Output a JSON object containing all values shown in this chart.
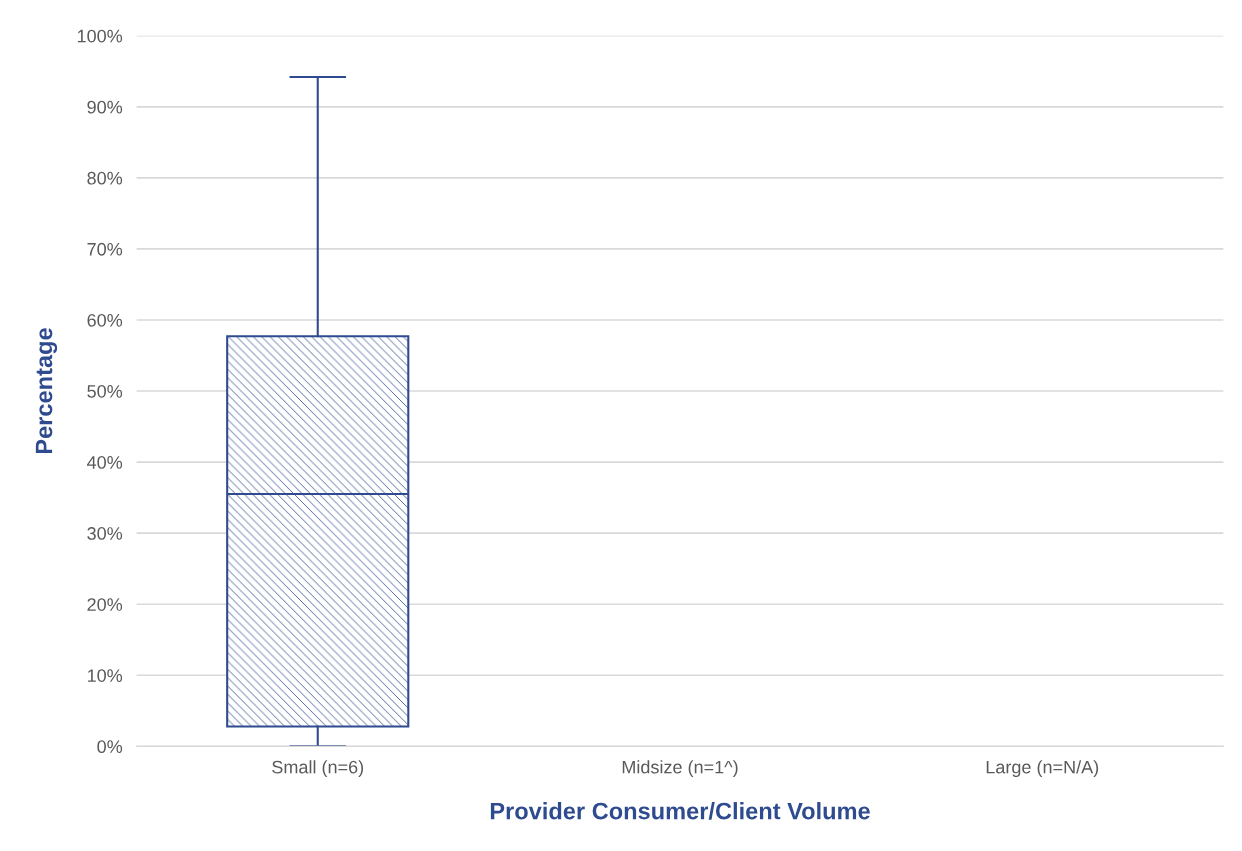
{
  "chart_data": {
    "type": "box",
    "xlabel": "Provider Consumer/Client Volume",
    "ylabel": "Percentage",
    "categories": [
      "Small (n=6)",
      "Midsize (n=1^)",
      "Large (n=N/A)"
    ],
    "boxes": [
      {
        "low": 0,
        "q1": 2.8,
        "median": 35.5,
        "q3": 57.7,
        "high": 94.2
      },
      null,
      null
    ],
    "color": "#2f4b8f",
    "ylim": [
      0,
      100
    ],
    "yticks": [
      {
        "value": 0,
        "label": "0%"
      },
      {
        "value": 10,
        "label": "10%"
      },
      {
        "value": 20,
        "label": "20%"
      },
      {
        "value": 30,
        "label": "30%"
      },
      {
        "value": 40,
        "label": "40%"
      },
      {
        "value": 50,
        "label": "50%"
      },
      {
        "value": 60,
        "label": "60%"
      },
      {
        "value": 70,
        "label": "70%"
      },
      {
        "value": 80,
        "label": "80%"
      },
      {
        "value": 90,
        "label": "90%"
      },
      {
        "value": 100,
        "label": "100%"
      }
    ],
    "grid": "y"
  }
}
